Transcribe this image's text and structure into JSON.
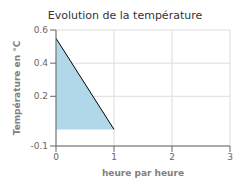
{
  "chart_data": {
    "type": "area",
    "title": "Evolution de la température",
    "xlabel": "heure par heure",
    "ylabel": "Température en °C",
    "x": [
      0,
      1
    ],
    "values": [
      0.55,
      0.0
    ],
    "color": "#b0d8e8",
    "xlim": [
      0,
      3
    ],
    "ylim": [
      -0.1,
      0.6
    ],
    "xticks": [
      0,
      1,
      2,
      3
    ],
    "yticks": [
      -0.1,
      0.2,
      0.4,
      0.6
    ],
    "grid": true
  }
}
